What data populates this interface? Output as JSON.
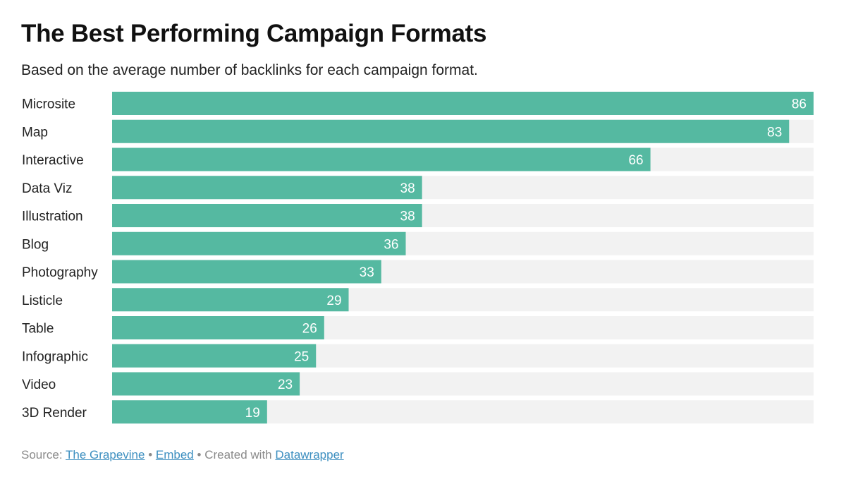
{
  "header": {
    "title": "The Best Performing Campaign Formats",
    "subtitle": "Based on the average number of backlinks for each campaign format."
  },
  "footer": {
    "source_prefix": "Source:",
    "source_link": "The Grapevine",
    "separator": "•",
    "embed_link": "Embed",
    "created_with": "Created with",
    "tool_link": "Datawrapper"
  },
  "colors": {
    "bar": "#55b9a1",
    "track": "#f2f2f2",
    "value_text": "#ffffff",
    "label_text": "#222222",
    "link": "#3d8fc0"
  },
  "chart_data": {
    "type": "bar",
    "orientation": "horizontal",
    "title": "The Best Performing Campaign Formats",
    "subtitle": "Based on the average number of backlinks for each campaign format.",
    "categories": [
      "Microsite",
      "Map",
      "Interactive",
      "Data Viz",
      "Illustration",
      "Blog",
      "Photography",
      "Listicle",
      "Table",
      "Infographic",
      "Video",
      "3D Render"
    ],
    "values": [
      86,
      83,
      66,
      38,
      38,
      36,
      33,
      29,
      26,
      25,
      23,
      19
    ],
    "xlim": [
      0,
      86
    ],
    "grid": false,
    "legend": "none"
  }
}
